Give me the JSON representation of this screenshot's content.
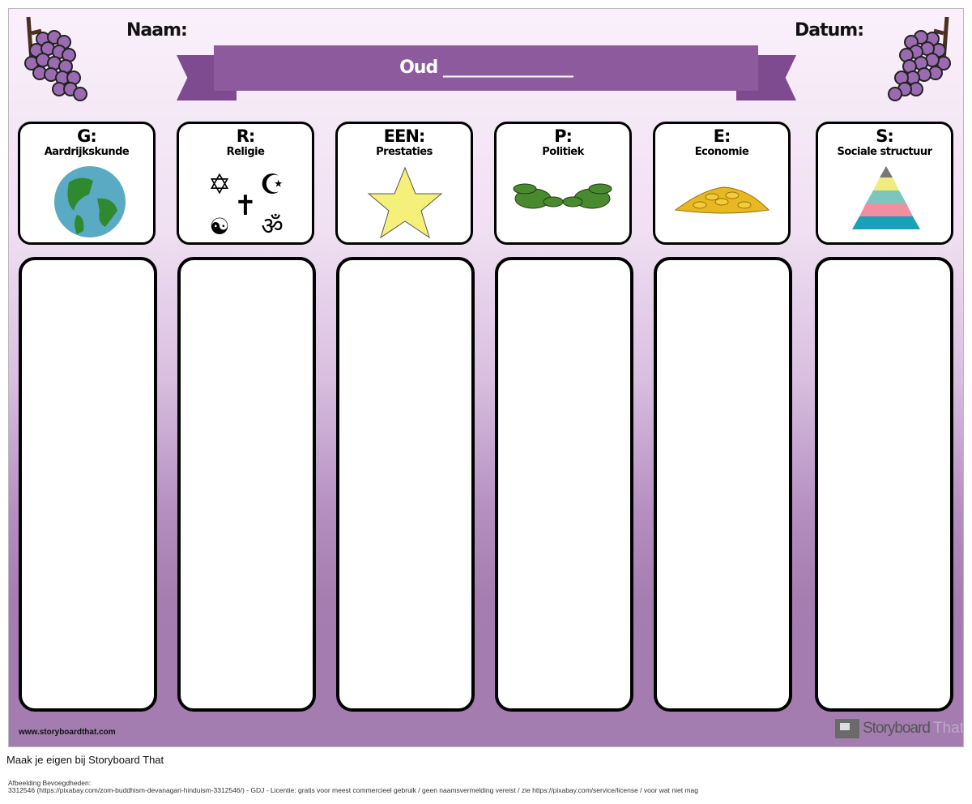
{
  "header": {
    "name_label": "Naam:",
    "date_label": "Datum:",
    "banner_title": "Oud ________________"
  },
  "categories": [
    {
      "letter": "G:",
      "title": "Aardrijkskunde",
      "icon": "globe-icon"
    },
    {
      "letter": "R:",
      "title": "Religie",
      "icon": "religion-symbols-icon"
    },
    {
      "letter": "EEN:",
      "title": "Prestaties",
      "icon": "star-icon"
    },
    {
      "letter": "P:",
      "title": "Politiek",
      "icon": "laurel-wreath-icon"
    },
    {
      "letter": "E:",
      "title": "Economie",
      "icon": "gold-coins-icon"
    },
    {
      "letter": "S:",
      "title": "Sociale structuur",
      "icon": "pyramid-icon"
    }
  ],
  "footer": {
    "url": "www.storyboardthat.com",
    "logo_storyboard": "Storyboard",
    "logo_that": "That"
  },
  "cta": "Maak je eigen bij Storyboard That",
  "attribution": {
    "heading": "Afbeelding Bevoegdheden:",
    "text": "3312546 (https://pixabay.com/zom-buddhism-devanagari-hinduism-3312546/) - GDJ - Licentie: gratis voor meest commercieel gebruik / geen naamsvermelding vereist / zie https://pixabay.com/service/license / voor wat niet mag"
  },
  "colors": {
    "banner": "#8e5a9e",
    "grape": "#9a6bb0",
    "background_bottom": "#a57db0"
  }
}
